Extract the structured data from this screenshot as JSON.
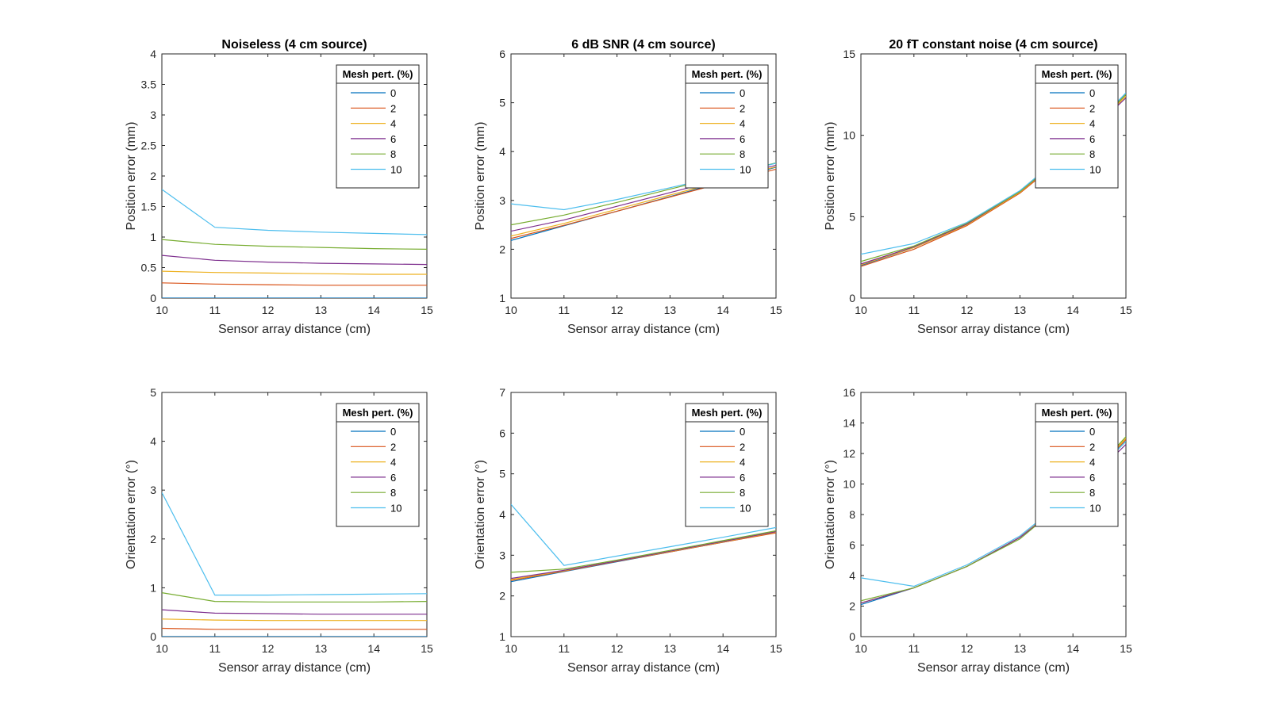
{
  "chart_data": [
    {
      "type": "line",
      "title": "Noiseless (4 cm source)",
      "xlabel": "Sensor array distance (cm)",
      "ylabel": "Position error (mm)",
      "x": [
        10,
        11,
        12,
        13,
        14,
        15
      ],
      "xlim": [
        10,
        15
      ],
      "ylim": [
        0,
        4
      ],
      "xticks": [
        "10",
        "11",
        "12",
        "13",
        "14",
        "15"
      ],
      "yticks": [
        "0",
        "0.5",
        "1",
        "1.5",
        "2",
        "2.5",
        "3",
        "3.5",
        "4"
      ],
      "legend_title": "Mesh pert. (%)",
      "legend_position": "top-right",
      "grid": false,
      "series": [
        {
          "name": "0",
          "color": "#0072BD",
          "values": [
            0,
            0,
            0,
            0,
            0,
            0
          ]
        },
        {
          "name": "2",
          "color": "#D95319",
          "values": [
            0.25,
            0.23,
            0.22,
            0.21,
            0.21,
            0.21
          ]
        },
        {
          "name": "4",
          "color": "#EDB120",
          "values": [
            0.44,
            0.42,
            0.41,
            0.4,
            0.39,
            0.39
          ]
        },
        {
          "name": "6",
          "color": "#7E2F8E",
          "values": [
            0.7,
            0.62,
            0.59,
            0.57,
            0.56,
            0.55
          ]
        },
        {
          "name": "8",
          "color": "#77AC30",
          "values": [
            0.96,
            0.88,
            0.85,
            0.83,
            0.81,
            0.8
          ]
        },
        {
          "name": "10",
          "color": "#4DBEEE",
          "values": [
            1.78,
            1.16,
            1.11,
            1.08,
            1.06,
            1.04
          ]
        }
      ]
    },
    {
      "type": "line",
      "title": "6 dB SNR (4 cm source)",
      "xlabel": "Sensor array distance (cm)",
      "ylabel": "Position error (mm)",
      "x": [
        10,
        11,
        12,
        13,
        14,
        15
      ],
      "xlim": [
        10,
        15
      ],
      "ylim": [
        1,
        6
      ],
      "xticks": [
        "10",
        "11",
        "12",
        "13",
        "14",
        "15"
      ],
      "yticks": [
        "1",
        "2",
        "3",
        "4",
        "5",
        "6"
      ],
      "legend_title": "Mesh pert. (%)",
      "legend_position": "top-right",
      "grid": false,
      "series": [
        {
          "name": "0",
          "color": "#0072BD",
          "values": [
            2.18,
            2.48,
            2.78,
            3.08,
            3.38,
            3.68
          ]
        },
        {
          "name": "2",
          "color": "#D95319",
          "values": [
            2.22,
            2.49,
            2.78,
            3.07,
            3.36,
            3.64
          ]
        },
        {
          "name": "4",
          "color": "#EDB120",
          "values": [
            2.27,
            2.53,
            2.82,
            3.11,
            3.4,
            3.69
          ]
        },
        {
          "name": "6",
          "color": "#7E2F8E",
          "values": [
            2.37,
            2.6,
            2.88,
            3.16,
            3.44,
            3.72
          ]
        },
        {
          "name": "8",
          "color": "#77AC30",
          "values": [
            2.5,
            2.7,
            2.96,
            3.23,
            3.5,
            3.77
          ]
        },
        {
          "name": "10",
          "color": "#4DBEEE",
          "values": [
            2.93,
            2.81,
            3.02,
            3.26,
            3.51,
            3.76
          ]
        }
      ]
    },
    {
      "type": "line",
      "title": "20 fT constant noise (4 cm source)",
      "xlabel": "Sensor array distance (cm)",
      "ylabel": "Position error (mm)",
      "x": [
        10,
        11,
        12,
        13,
        14,
        15
      ],
      "xlim": [
        10,
        15
      ],
      "ylim": [
        0,
        15
      ],
      "xticks": [
        "10",
        "11",
        "12",
        "13",
        "14",
        "15"
      ],
      "yticks": [
        "0",
        "5",
        "10",
        "15"
      ],
      "legend_title": "Mesh pert. (%)",
      "legend_position": "top-right",
      "grid": false,
      "series": [
        {
          "name": "0",
          "color": "#0072BD",
          "values": [
            2.0,
            3.1,
            4.5,
            6.5,
            9.2,
            12.6
          ]
        },
        {
          "name": "2",
          "color": "#D95319",
          "values": [
            1.95,
            3.0,
            4.45,
            6.45,
            9.1,
            12.5
          ]
        },
        {
          "name": "4",
          "color": "#EDB120",
          "values": [
            2.05,
            3.1,
            4.5,
            6.5,
            9.2,
            12.4
          ]
        },
        {
          "name": "6",
          "color": "#7E2F8E",
          "values": [
            2.1,
            3.15,
            4.55,
            6.55,
            9.2,
            12.3
          ]
        },
        {
          "name": "8",
          "color": "#77AC30",
          "values": [
            2.25,
            3.2,
            4.6,
            6.55,
            9.25,
            12.5
          ]
        },
        {
          "name": "10",
          "color": "#4DBEEE",
          "values": [
            2.7,
            3.35,
            4.65,
            6.6,
            9.3,
            12.6
          ]
        }
      ]
    },
    {
      "type": "line",
      "title": "",
      "xlabel": "Sensor array distance (cm)",
      "ylabel": "Orientation error (°)",
      "x": [
        10,
        11,
        12,
        13,
        14,
        15
      ],
      "xlim": [
        10,
        15
      ],
      "ylim": [
        0,
        5
      ],
      "xticks": [
        "10",
        "11",
        "12",
        "13",
        "14",
        "15"
      ],
      "yticks": [
        "0",
        "1",
        "2",
        "3",
        "4",
        "5"
      ],
      "legend_title": "Mesh pert. (%)",
      "legend_position": "top-right",
      "grid": false,
      "series": [
        {
          "name": "0",
          "color": "#0072BD",
          "values": [
            0,
            0,
            0,
            0,
            0,
            0
          ]
        },
        {
          "name": "2",
          "color": "#D95319",
          "values": [
            0.17,
            0.15,
            0.15,
            0.15,
            0.15,
            0.15
          ]
        },
        {
          "name": "4",
          "color": "#EDB120",
          "values": [
            0.36,
            0.34,
            0.33,
            0.33,
            0.33,
            0.33
          ]
        },
        {
          "name": "6",
          "color": "#7E2F8E",
          "values": [
            0.55,
            0.48,
            0.47,
            0.46,
            0.46,
            0.46
          ]
        },
        {
          "name": "8",
          "color": "#77AC30",
          "values": [
            0.9,
            0.72,
            0.71,
            0.71,
            0.71,
            0.72
          ]
        },
        {
          "name": "10",
          "color": "#4DBEEE",
          "values": [
            2.95,
            0.85,
            0.85,
            0.86,
            0.87,
            0.88
          ]
        }
      ]
    },
    {
      "type": "line",
      "title": "",
      "xlabel": "Sensor array distance (cm)",
      "ylabel": "Orientation error (°)",
      "x": [
        10,
        11,
        12,
        13,
        14,
        15
      ],
      "xlim": [
        10,
        15
      ],
      "ylim": [
        1,
        7
      ],
      "xticks": [
        "10",
        "11",
        "12",
        "13",
        "14",
        "15"
      ],
      "yticks": [
        "1",
        "2",
        "3",
        "4",
        "5",
        "6",
        "7"
      ],
      "legend_title": "Mesh pert. (%)",
      "legend_position": "top-right",
      "grid": false,
      "series": [
        {
          "name": "0",
          "color": "#0072BD",
          "values": [
            2.35,
            2.6,
            2.84,
            3.08,
            3.32,
            3.56
          ]
        },
        {
          "name": "2",
          "color": "#D95319",
          "values": [
            2.38,
            2.61,
            2.85,
            3.08,
            3.32,
            3.55
          ]
        },
        {
          "name": "4",
          "color": "#EDB120",
          "values": [
            2.4,
            2.62,
            2.86,
            3.09,
            3.33,
            3.57
          ]
        },
        {
          "name": "6",
          "color": "#7E2F8E",
          "values": [
            2.43,
            2.63,
            2.86,
            3.1,
            3.34,
            3.58
          ]
        },
        {
          "name": "8",
          "color": "#77AC30",
          "values": [
            2.58,
            2.66,
            2.88,
            3.12,
            3.36,
            3.6
          ]
        },
        {
          "name": "10",
          "color": "#4DBEEE",
          "values": [
            4.25,
            2.75,
            2.98,
            3.21,
            3.44,
            3.68
          ]
        }
      ]
    },
    {
      "type": "line",
      "title": "",
      "xlabel": "Sensor array distance (cm)",
      "ylabel": "Orientation error (°)",
      "x": [
        10,
        11,
        12,
        13,
        14,
        15
      ],
      "xlim": [
        10,
        15
      ],
      "ylim": [
        0,
        16
      ],
      "xticks": [
        "10",
        "11",
        "12",
        "13",
        "14",
        "15"
      ],
      "yticks": [
        "0",
        "2",
        "4",
        "6",
        "8",
        "10",
        "12",
        "14",
        "16"
      ],
      "legend_title": "Mesh pert. (%)",
      "legend_position": "top-right",
      "grid": false,
      "series": [
        {
          "name": "0",
          "color": "#0072BD",
          "values": [
            2.1,
            3.2,
            4.6,
            6.5,
            9.3,
            12.8
          ]
        },
        {
          "name": "2",
          "color": "#D95319",
          "values": [
            2.2,
            3.2,
            4.6,
            6.5,
            9.3,
            12.9
          ]
        },
        {
          "name": "4",
          "color": "#EDB120",
          "values": [
            2.2,
            3.2,
            4.6,
            6.5,
            9.3,
            13.0
          ]
        },
        {
          "name": "6",
          "color": "#7E2F8E",
          "values": [
            2.2,
            3.2,
            4.6,
            6.5,
            9.2,
            12.6
          ]
        },
        {
          "name": "8",
          "color": "#77AC30",
          "values": [
            2.35,
            3.2,
            4.6,
            6.4,
            9.3,
            13.1
          ]
        },
        {
          "name": "10",
          "color": "#4DBEEE",
          "values": [
            3.85,
            3.3,
            4.7,
            6.6,
            9.4,
            12.8
          ]
        }
      ]
    }
  ]
}
